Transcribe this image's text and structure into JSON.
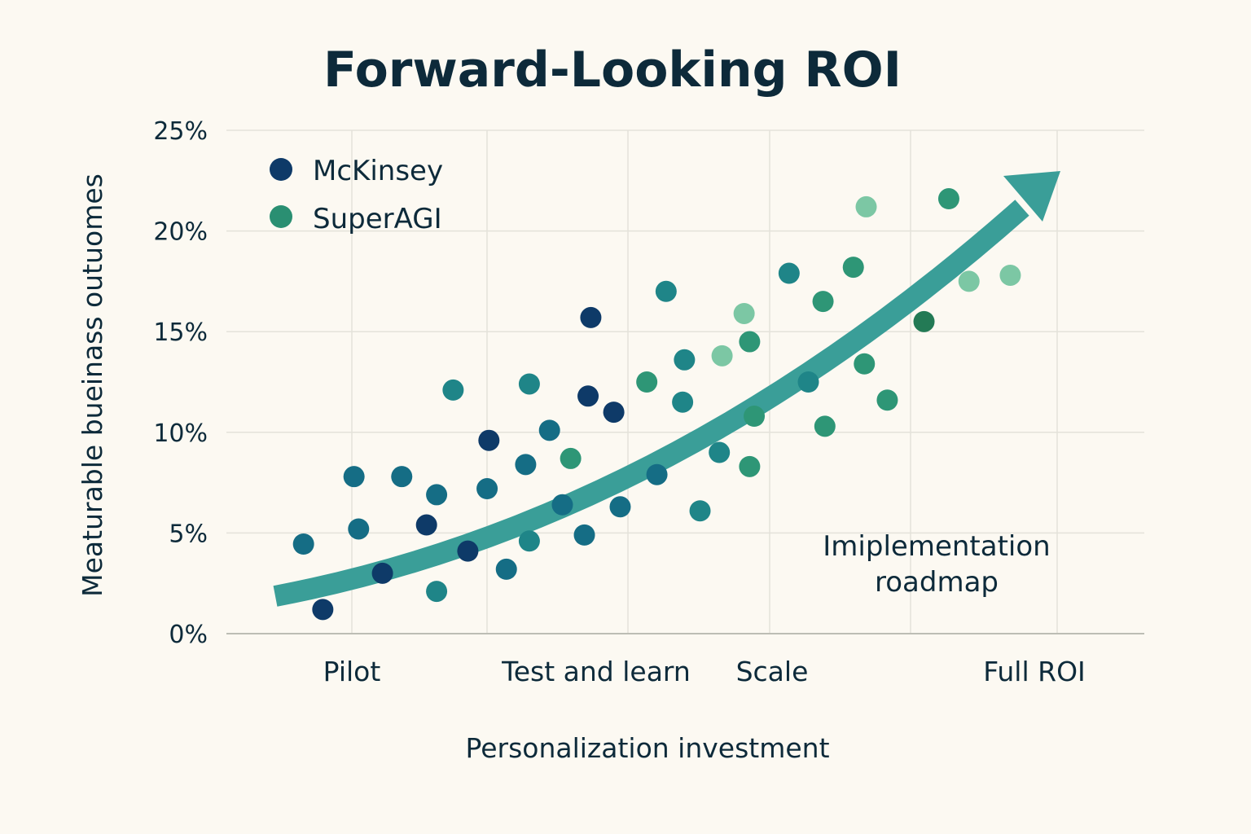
{
  "chart_data": {
    "type": "scatter",
    "title": "Forward-Looking ROI",
    "xlabel": "Personalization investment",
    "ylabel": "Meaturable bueinass outuomes",
    "ylim": [
      0,
      25
    ],
    "xlim": [
      0,
      100
    ],
    "y_ticks": [
      "0%",
      "5%",
      "10%",
      "15%",
      "20%",
      "25%"
    ],
    "x_categories": [
      "Pilot",
      "Test and learn",
      "Scale",
      "Full ROI"
    ],
    "grid": true,
    "legend_position": "top-left",
    "annotation": {
      "line1": "Imiplementation",
      "line2": "roadmap"
    },
    "trend_arrow": {
      "color": "#3a9e98",
      "direction": "up-right"
    },
    "colors": {
      "navy": "#0e3a68",
      "blue_teal": "#156d85",
      "teal": "#1f8588",
      "green": "#2e9676",
      "light_green": "#7cc7a4",
      "dark_green": "#237a55"
    },
    "series": [
      {
        "name": "McKinsey",
        "color": "#0e3a68",
        "points": [
          {
            "x": 10.5,
            "y": 1.2,
            "shade": "navy"
          },
          {
            "x": 17.0,
            "y": 3.0,
            "shade": "navy"
          },
          {
            "x": 21.8,
            "y": 5.4,
            "shade": "navy"
          },
          {
            "x": 26.3,
            "y": 4.1,
            "shade": "navy"
          },
          {
            "x": 28.6,
            "y": 9.6,
            "shade": "navy"
          },
          {
            "x": 39.4,
            "y": 11.8,
            "shade": "navy"
          },
          {
            "x": 39.7,
            "y": 15.7,
            "shade": "navy"
          },
          {
            "x": 42.2,
            "y": 11.0,
            "shade": "navy"
          },
          {
            "x": 8.4,
            "y": 4.45,
            "shade": "blue_teal"
          },
          {
            "x": 13.9,
            "y": 7.8,
            "shade": "blue_teal"
          },
          {
            "x": 14.4,
            "y": 5.2,
            "shade": "blue_teal"
          },
          {
            "x": 19.1,
            "y": 7.8,
            "shade": "blue_teal"
          },
          {
            "x": 22.9,
            "y": 6.9,
            "shade": "blue_teal"
          },
          {
            "x": 22.9,
            "y": 2.1,
            "shade": "teal"
          },
          {
            "x": 24.7,
            "y": 12.1,
            "shade": "teal"
          },
          {
            "x": 28.4,
            "y": 7.2,
            "shade": "blue_teal"
          },
          {
            "x": 30.5,
            "y": 3.2,
            "shade": "blue_teal"
          },
          {
            "x": 32.6,
            "y": 8.4,
            "shade": "blue_teal"
          },
          {
            "x": 33.0,
            "y": 4.6,
            "shade": "teal"
          },
          {
            "x": 35.2,
            "y": 10.1,
            "shade": "blue_teal"
          },
          {
            "x": 36.6,
            "y": 6.4,
            "shade": "blue_teal"
          },
          {
            "x": 39.0,
            "y": 4.9,
            "shade": "blue_teal"
          },
          {
            "x": 42.9,
            "y": 6.3,
            "shade": "blue_teal"
          },
          {
            "x": 46.9,
            "y": 7.9,
            "shade": "blue_teal"
          },
          {
            "x": 51.6,
            "y": 6.1,
            "shade": "teal"
          }
        ]
      },
      {
        "name": "SuperAGI",
        "color": "#2a8f72",
        "points": [
          {
            "x": 33.0,
            "y": 12.4,
            "shade": "teal"
          },
          {
            "x": 37.5,
            "y": 8.7,
            "shade": "green"
          },
          {
            "x": 45.8,
            "y": 12.5,
            "shade": "green"
          },
          {
            "x": 47.9,
            "y": 17.0,
            "shade": "teal"
          },
          {
            "x": 49.7,
            "y": 11.5,
            "shade": "teal"
          },
          {
            "x": 49.9,
            "y": 13.6,
            "shade": "teal"
          },
          {
            "x": 53.7,
            "y": 9.0,
            "shade": "teal"
          },
          {
            "x": 54.0,
            "y": 13.8,
            "shade": "light_green"
          },
          {
            "x": 56.4,
            "y": 15.9,
            "shade": "light_green"
          },
          {
            "x": 57.5,
            "y": 10.8,
            "shade": "green"
          },
          {
            "x": 57.0,
            "y": 14.5,
            "shade": "green"
          },
          {
            "x": 57.0,
            "y": 8.3,
            "shade": "green"
          },
          {
            "x": 61.3,
            "y": 17.9,
            "shade": "teal"
          },
          {
            "x": 63.4,
            "y": 12.5,
            "shade": "teal"
          },
          {
            "x": 65.0,
            "y": 16.5,
            "shade": "green"
          },
          {
            "x": 65.2,
            "y": 10.3,
            "shade": "green"
          },
          {
            "x": 68.3,
            "y": 18.2,
            "shade": "green"
          },
          {
            "x": 69.5,
            "y": 13.4,
            "shade": "green"
          },
          {
            "x": 69.7,
            "y": 21.2,
            "shade": "light_green"
          },
          {
            "x": 72.0,
            "y": 11.6,
            "shade": "green"
          },
          {
            "x": 76.0,
            "y": 15.5,
            "shade": "dark_green"
          },
          {
            "x": 78.7,
            "y": 21.6,
            "shade": "green"
          },
          {
            "x": 80.9,
            "y": 17.5,
            "shade": "light_green"
          },
          {
            "x": 85.4,
            "y": 17.8,
            "shade": "light_green"
          }
        ]
      }
    ]
  }
}
